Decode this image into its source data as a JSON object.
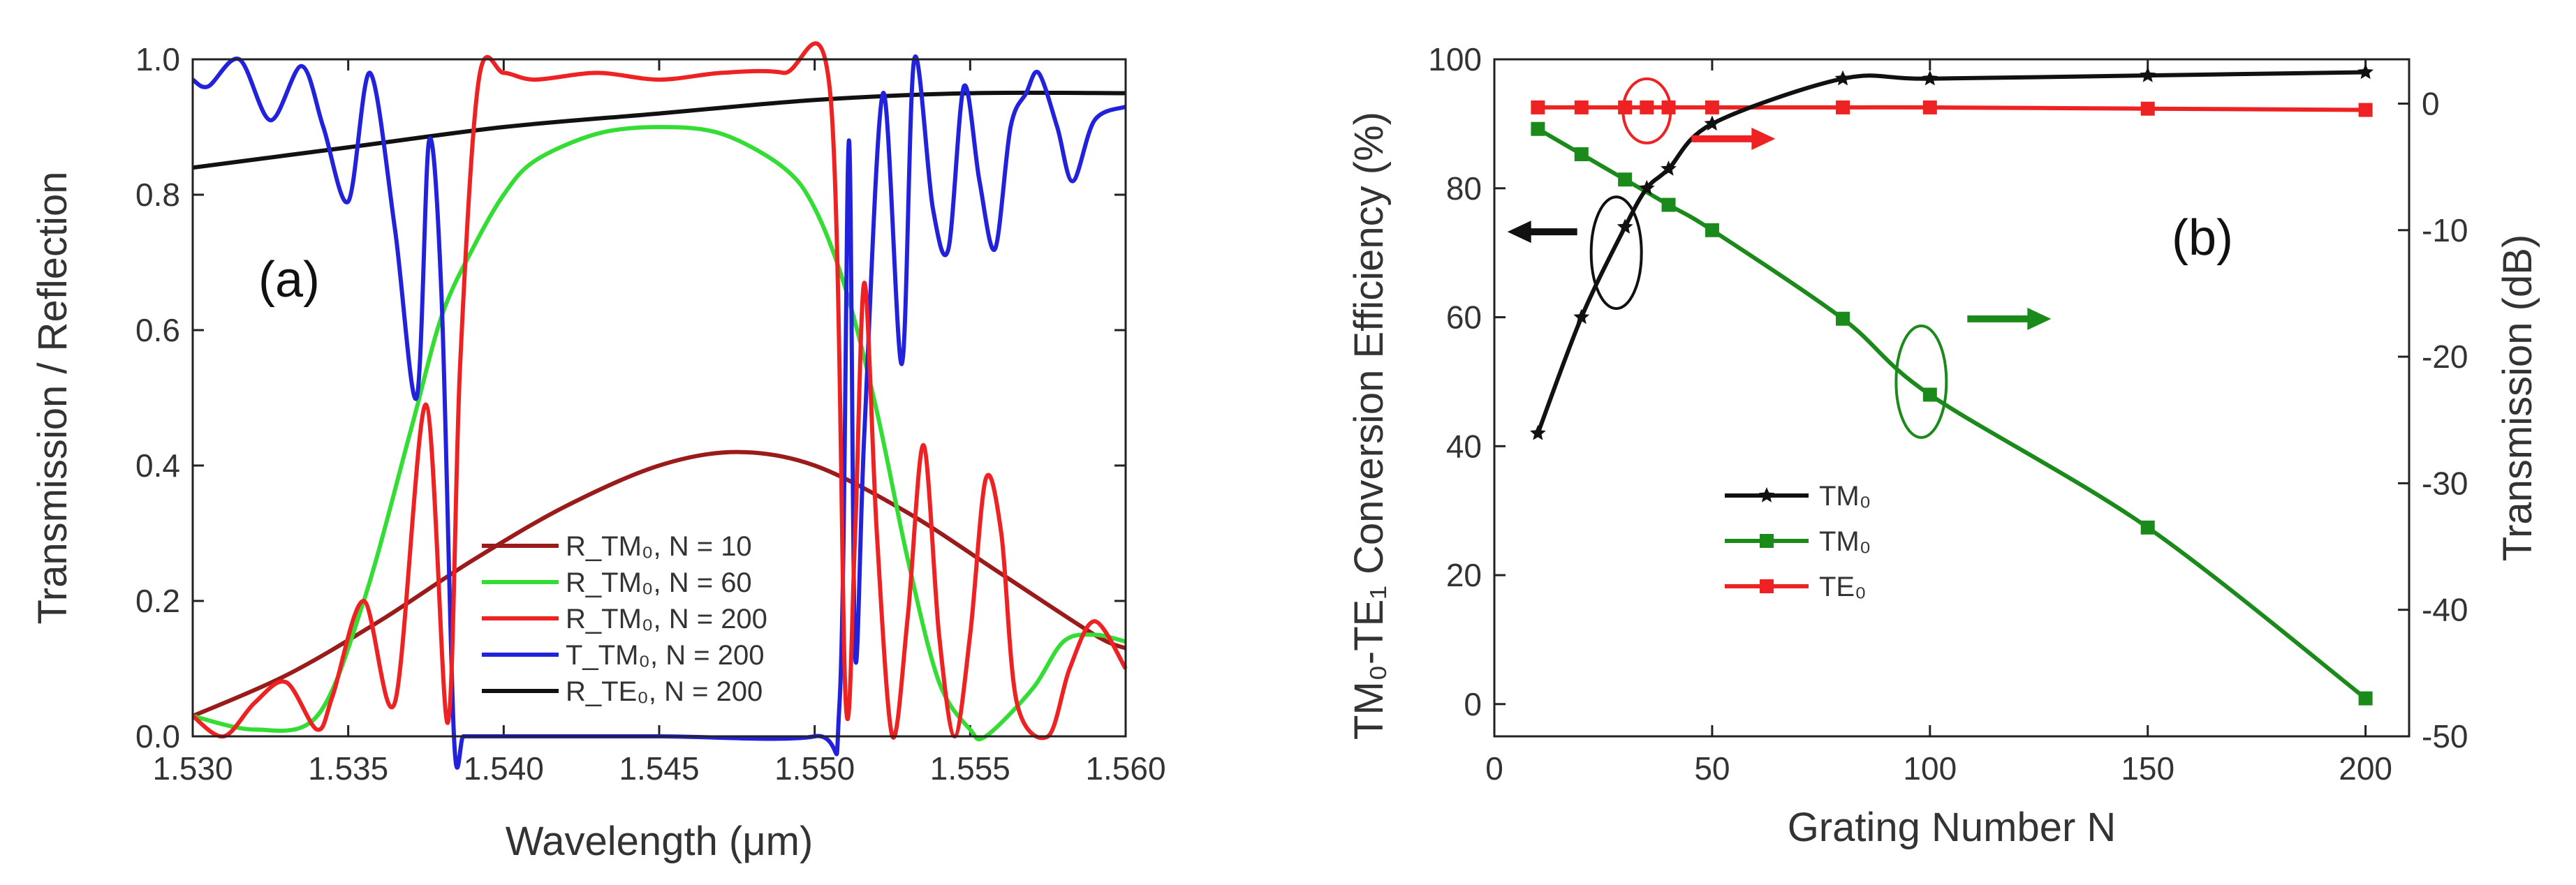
{
  "chart_data": [
    {
      "type": "line",
      "panel_label": "(a)",
      "xlabel": "Wavelength (μm)",
      "ylabel": "Transmission / Reflection",
      "xlim": [
        1.53,
        1.56
      ],
      "ylim": [
        0.0,
        1.0
      ],
      "x_ticks": [
        "1.530",
        "1.535",
        "1.540",
        "1.545",
        "1.550",
        "1.555",
        "1.560"
      ],
      "x_tick_values": [
        1.53,
        1.535,
        1.54,
        1.545,
        1.55,
        1.555,
        1.56
      ],
      "y_ticks": [
        "0.0",
        "0.2",
        "0.4",
        "0.6",
        "0.8",
        "1.0"
      ],
      "y_tick_values": [
        0.0,
        0.2,
        0.4,
        0.6,
        0.8,
        1.0
      ],
      "legend_position": "bottom-center",
      "series": [
        {
          "name": "R_TM₀, N = 10",
          "color": "#9b1b1b",
          "x": [
            1.53,
            1.533,
            1.536,
            1.539,
            1.542,
            1.545,
            1.5475,
            1.55,
            1.553,
            1.556,
            1.559,
            1.56
          ],
          "y": [
            0.03,
            0.09,
            0.17,
            0.26,
            0.34,
            0.4,
            0.42,
            0.4,
            0.33,
            0.24,
            0.15,
            0.13
          ]
        },
        {
          "name": "R_TM₀, N = 60",
          "color": "#33dd33",
          "x": [
            1.53,
            1.532,
            1.534,
            1.5355,
            1.537,
            1.538,
            1.539,
            1.54,
            1.541,
            1.543,
            1.545,
            1.547,
            1.549,
            1.55,
            1.551,
            1.552,
            1.553,
            1.554,
            1.555,
            1.5555,
            1.557,
            1.558,
            1.559,
            1.56
          ],
          "y": [
            0.03,
            0.01,
            0.03,
            0.2,
            0.45,
            0.62,
            0.72,
            0.8,
            0.85,
            0.89,
            0.9,
            0.89,
            0.84,
            0.78,
            0.66,
            0.48,
            0.26,
            0.08,
            0.01,
            0.0,
            0.07,
            0.14,
            0.15,
            0.14
          ]
        },
        {
          "name": "R_TM₀, N = 200",
          "color": "#ee2222",
          "x": [
            1.53,
            1.531,
            1.532,
            1.533,
            1.534,
            1.5345,
            1.5355,
            1.5365,
            1.5375,
            1.5382,
            1.5386,
            1.5392,
            1.54,
            1.541,
            1.543,
            1.545,
            1.547,
            1.549,
            1.5505,
            1.551,
            1.5513,
            1.5516,
            1.552,
            1.5525,
            1.553,
            1.5535,
            1.554,
            1.5545,
            1.555,
            1.5555,
            1.556,
            1.5565,
            1.5575,
            1.5582,
            1.559,
            1.56
          ],
          "y": [
            0.03,
            0.0,
            0.05,
            0.08,
            0.01,
            0.06,
            0.2,
            0.05,
            0.49,
            0.02,
            0.55,
            0.97,
            0.98,
            0.97,
            0.98,
            0.97,
            0.98,
            0.98,
            0.95,
            0.05,
            0.3,
            0.67,
            0.3,
            0.0,
            0.18,
            0.43,
            0.15,
            0.0,
            0.15,
            0.38,
            0.3,
            0.05,
            0.0,
            0.1,
            0.17,
            0.1
          ]
        },
        {
          "name": "T_TM₀, N = 200",
          "color": "#2222dd",
          "x": [
            1.53,
            1.5305,
            1.5315,
            1.5325,
            1.5335,
            1.5342,
            1.535,
            1.5357,
            1.5365,
            1.5372,
            1.5376,
            1.538,
            1.5384,
            1.5387,
            1.5391,
            1.5395,
            1.54,
            1.545,
            1.55,
            1.5508,
            1.5511,
            1.5513,
            1.5516,
            1.5522,
            1.5528,
            1.5532,
            1.5538,
            1.5543,
            1.5548,
            1.5553,
            1.5558,
            1.5563,
            1.5568,
            1.5572,
            1.5578,
            1.5583,
            1.559,
            1.56
          ],
          "y": [
            0.97,
            0.96,
            1.0,
            0.91,
            0.99,
            0.9,
            0.79,
            0.98,
            0.75,
            0.5,
            0.88,
            0.65,
            0.0,
            0.0,
            0.0,
            0.0,
            0.0,
            0.0,
            0.0,
            0.05,
            0.88,
            0.12,
            0.45,
            0.95,
            0.55,
            1.0,
            0.78,
            0.72,
            0.96,
            0.82,
            0.72,
            0.9,
            0.95,
            0.98,
            0.9,
            0.82,
            0.91,
            0.93
          ]
        },
        {
          "name": "R_TE₀, N = 200",
          "color": "#111111",
          "x": [
            1.53,
            1.535,
            1.54,
            1.545,
            1.55,
            1.555,
            1.56
          ],
          "y": [
            0.84,
            0.87,
            0.9,
            0.92,
            0.94,
            0.95,
            0.95
          ]
        }
      ]
    },
    {
      "type": "line",
      "panel_label": "(b)",
      "xlabel": "Grating Number N",
      "ylabel": "TM₀-TE₁ Conversion Efficiency (%)",
      "y2label": "Transmission (dB)",
      "xlim": [
        0,
        210
      ],
      "ylim": [
        -5,
        100
      ],
      "y2lim": [
        -50,
        3.5
      ],
      "x_ticks": [
        "0",
        "50",
        "100",
        "150",
        "200"
      ],
      "x_tick_values": [
        0,
        50,
        100,
        150,
        200
      ],
      "y_ticks": [
        "0",
        "20",
        "40",
        "60",
        "80",
        "100"
      ],
      "y_tick_values": [
        0,
        20,
        40,
        60,
        80,
        100
      ],
      "y2_ticks": [
        "0",
        "-10",
        "-20",
        "-30",
        "-40",
        "-50"
      ],
      "y2_tick_values": [
        0,
        -10,
        -20,
        -30,
        -40,
        -50
      ],
      "legend_position": "center-left",
      "series": [
        {
          "name": "TM₀",
          "axis": "left",
          "marker": "star",
          "color": "#111111",
          "x": [
            10,
            20,
            30,
            35,
            40,
            50,
            80,
            100,
            150,
            200
          ],
          "y": [
            42,
            60,
            74,
            80,
            83,
            90,
            97,
            97,
            97.5,
            98
          ]
        },
        {
          "name": "TM₀",
          "axis": "right",
          "marker": "square",
          "color": "#1a8a1a",
          "x": [
            10,
            20,
            30,
            40,
            50,
            80,
            100,
            150,
            200
          ],
          "y": [
            -2,
            -4,
            -6,
            -8,
            -10,
            -17,
            -23,
            -33.5,
            -47
          ]
        },
        {
          "name": "TE₀",
          "axis": "right",
          "marker": "square",
          "color": "#ee2222",
          "x": [
            10,
            20,
            30,
            35,
            40,
            50,
            80,
            100,
            150,
            200
          ],
          "y": [
            -0.3,
            -0.3,
            -0.3,
            -0.3,
            -0.3,
            -0.3,
            -0.3,
            -0.3,
            -0.4,
            -0.5
          ]
        }
      ],
      "annotations": [
        {
          "target": "TE₀",
          "axis_arrow": "right",
          "color": "#ee2222",
          "x": 35,
          "y": 92
        },
        {
          "target": "TM₀",
          "axis_arrow": "left",
          "color": "#111111",
          "x": 28,
          "y": 70
        },
        {
          "target": "TM₀",
          "axis_arrow": "right",
          "color": "#1a8a1a",
          "x": 98,
          "y": 50
        }
      ]
    }
  ]
}
